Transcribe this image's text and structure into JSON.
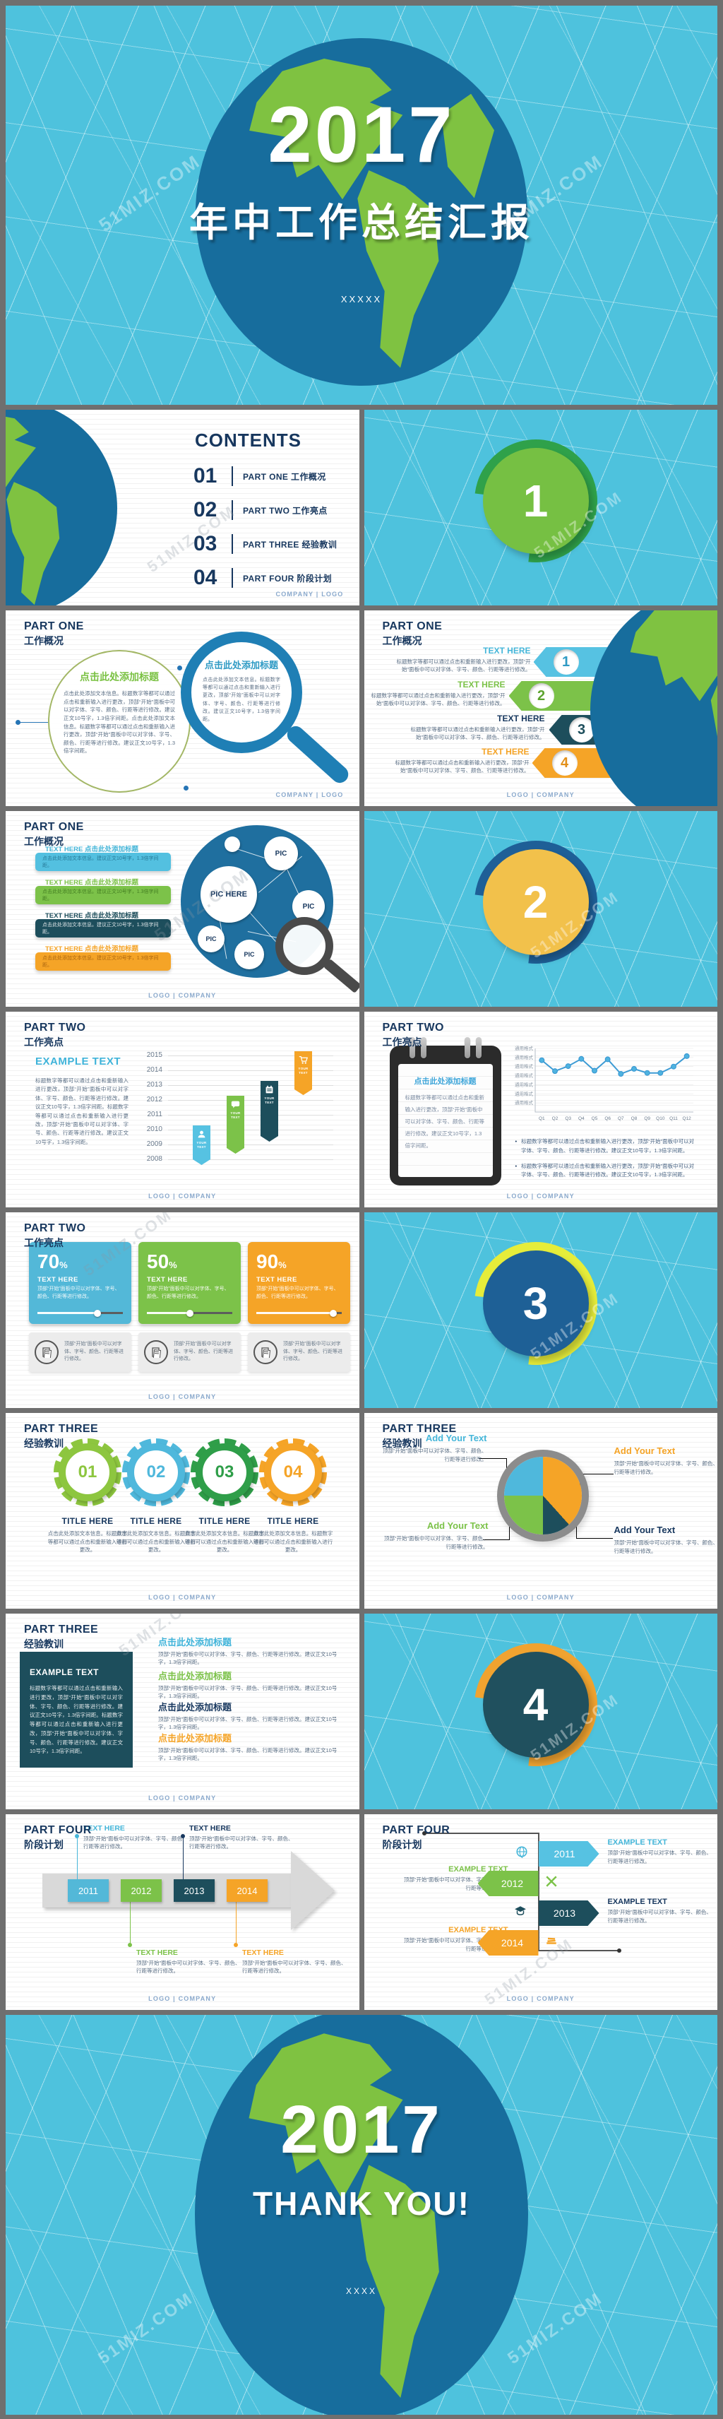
{
  "watermark": "51MIZ.COM",
  "colors": {
    "bg_blue": "#4ec2dd",
    "globe_blue": "#176d9d",
    "land_green": "#7fc241",
    "navy": "#17375e",
    "accent_blue": "#4fb8dc",
    "accent_green": "#7cc249",
    "accent_teal": "#1d4e5c",
    "accent_orange": "#f5a427",
    "frame_gray": "#6f6f6f"
  },
  "footers": {
    "company_logo": "COMPANY | LOGO",
    "logo_company": "LOGO | COMPANY"
  },
  "cover": {
    "year": "2017",
    "title": "年中工作总结汇报",
    "subtitle": "XXXXX"
  },
  "contents": {
    "title": "CONTENTS",
    "items": [
      {
        "num": "01",
        "label": "PART ONE  工作概况"
      },
      {
        "num": "02",
        "label": "PART TWO  工作亮点"
      },
      {
        "num": "03",
        "label": "PART THREE  经验教训"
      },
      {
        "num": "04",
        "label": "PART FOUR  阶段计划"
      }
    ]
  },
  "sections": {
    "part1": {
      "en": "PART ONE",
      "zh": "工作概况"
    },
    "part2": {
      "en": "PART TWO",
      "zh": "工作亮点"
    },
    "part3": {
      "en": "PART THREE",
      "zh": "经验教训"
    },
    "part4": {
      "en": "PART FOUR",
      "zh": "阶段计划"
    }
  },
  "dividers": {
    "d1": "1",
    "d2": "2",
    "d3": "3",
    "d4": "4"
  },
  "slide_magnifier": {
    "circle1": {
      "title": "点击此处添加标题",
      "body": "点击此处添加文本信息。标题数字等都可以通过点击和重新输入进行更改，顶部“开始”面板中可以对字体、字号、颜色、行距等进行修改。建议正文10号字，1.3倍字间距。点击此处添加文本信息。标题数字等都可以通过点击和重新输入进行更改，顶部“开始”面板中可以对字体、字号、颜色、行距等进行修改。建议正文10号字，1.3倍字间距。"
    },
    "circle2": {
      "title": "点击此处添加标题",
      "body": "点击此处添加文本信息。标题数字等都可以通过点击和重新输入进行更改，顶部“开始”面板中可以对字体、字号、颜色、行距等进行修改。建议正文10号字，1.3倍字间距。"
    }
  },
  "slide_arrows": {
    "items": [
      {
        "num": "1",
        "title": "TEXT HERE",
        "body": "标题数字等都可以通过点击和重新输入进行更改，顶部“开始”面板中可以对字体、字号、颜色、行距等进行修改。"
      },
      {
        "num": "2",
        "title": "TEXT HERE",
        "body": "标题数字等都可以通过点击和重新输入进行更改，顶部“开始”面板中可以对字体、字号、颜色、行距等进行修改。"
      },
      {
        "num": "3",
        "title": "TEXT HERE",
        "body": "标题数字等都可以通过点击和重新输入进行更改，顶部“开始”面板中可以对字体、字号、颜色、行距等进行修改。"
      },
      {
        "num": "4",
        "title": "TEXT HERE",
        "body": "标题数字等都可以通过点击和重新输入进行更改，顶部“开始”面板中可以对字体、字号、颜色、行距等进行修改。"
      }
    ]
  },
  "slide_network": {
    "pic_main": "PIC HERE",
    "pic": "PIC",
    "items": [
      {
        "label": "TEXT HERE 点击此处添加标题",
        "body": "点击此处添加文本信息。建议正文10号字，1.3倍字间距。"
      },
      {
        "label": "TEXT HERE 点击此处添加标题",
        "body": "点击此处添加文本信息。建议正文10号字，1.3倍字间距。"
      },
      {
        "label": "TEXT HERE 点击此处添加标题",
        "body": "点击此处添加文本信息。建议正文10号字，1.3倍字间距。"
      },
      {
        "label": "TEXT HERE 点击此处添加标题",
        "body": "点击此处添加文本信息。建议正文10号字，1.3倍字间距。"
      }
    ]
  },
  "slide_ribbons": {
    "title": "EXAMPLE TEXT",
    "body": "标题数字等都可以通过点击和重新输入进行更改，顶部“开始”面板中可以对字体、字号、颜色、行距等进行修改。建议正文10号字，1.3倍字间距。标题数字等都可以通过点击和重新输入进行更改，顶部“开始”面板中可以对字体、字号、颜色、行距等进行修改。建议正文10号字，1.3倍字间距。",
    "years": [
      "2015",
      "2014",
      "2013",
      "2012",
      "2011",
      "2010",
      "2009",
      "2008"
    ],
    "ribbon_label": "YOUR TEXT"
  },
  "slide_linechart": {
    "note_title": "点击此处添加标题",
    "note_body": "标题数字等都可以通过点击和重新输入进行更改，顶部“开始”面板中可以对字体、字号、颜色、行距等进行修改。建议正文10号字，1.3倍字间距。",
    "bullets": [
      "标题数字等都可以通过点击和重新输入进行更改，顶部“开始”面板中可以对字体、字号、颜色、行距等进行修改。建议正文10号字，1.3倍字间距。",
      "标题数字等都可以通过点击和重新输入进行更改，顶部“开始”面板中可以对字体、字号、颜色、行距等进行修改。建议正文10号字，1.3倍字间距。"
    ],
    "chart": {
      "type": "line",
      "x": [
        "Q1",
        "Q2",
        "Q3",
        "Q4",
        "Q5",
        "Q6",
        "Q7",
        "Q8",
        "Q9",
        "Q10",
        "Q11",
        "Q12"
      ],
      "values": [
        5.7,
        4.5,
        5.05,
        5.85,
        4.55,
        5.8,
        4.2,
        4.75,
        4.3,
        4.3,
        5.0,
        6.15
      ],
      "ylim": [
        0,
        7
      ],
      "y_tick_label": "通用格式",
      "y_tick_count": 7,
      "line_color": "#3d9bd4",
      "grid": true
    }
  },
  "slide_percent": {
    "sign": "%",
    "cards": [
      {
        "pct": "70",
        "title": "TEXT HERE",
        "body": "顶部“开始”面板中可以对字体、字号、颜色、行距等进行修改。"
      },
      {
        "pct": "50",
        "title": "TEXT HERE",
        "body": "顶部“开始”面板中可以对字体、字号、颜色、行距等进行修改。"
      },
      {
        "pct": "90",
        "title": "TEXT HERE",
        "body": "顶部“开始”面板中可以对字体、字号、颜色、行距等进行修改。"
      }
    ],
    "notes": [
      "顶部“开始”面板中可以对字体、字号、颜色、行距等进行修改。",
      "顶部“开始”面板中可以对字体、字号、颜色、行距等进行修改。",
      "顶部“开始”面板中可以对字体、字号、颜色、行距等进行修改。"
    ]
  },
  "slide_gears": {
    "items": [
      {
        "num": "01",
        "title": "TITLE HERE",
        "body": "点击此处添加文本信息。标题数字等都可以通过点击和重新输入进行更改。"
      },
      {
        "num": "02",
        "title": "TITLE HERE",
        "body": "点击此处添加文本信息。标题数字等都可以通过点击和重新输入进行更改。"
      },
      {
        "num": "03",
        "title": "TITLE HERE",
        "body": "点击此处添加文本信息。标题数字等都可以通过点击和重新输入进行更改。"
      },
      {
        "num": "04",
        "title": "TITLE HERE",
        "body": "点击此处添加文本信息。标题数字等都可以通过点击和重新输入进行更改。"
      }
    ]
  },
  "slide_pie": {
    "labels": [
      {
        "title": "Add Your Text",
        "body": "顶部“开始”面板中可以对字体、字号、颜色、行距等进行修改。"
      },
      {
        "title": "Add Your Text",
        "body": "顶部“开始”面板中可以对字体、字号、颜色、行距等进行修改。"
      },
      {
        "title": "Add Your Text",
        "body": "顶部“开始”面板中可以对字体、字号、颜色、行距等进行修改。"
      },
      {
        "title": "Add Your Text",
        "body": "顶部“开始”面板中可以对字体、字号、颜色、行距等进行修改。"
      }
    ]
  },
  "slide_blocks": {
    "box_title": "EXAMPLE TEXT",
    "box_body": "标题数字等都可以通过点击和重新输入进行更改，顶部“开始”面板中可以对字体、字号、颜色、行距等进行修改。建议正文10号字，1.3倍字间距。标题数字等都可以通过点击和重新输入进行更改，顶部“开始”面板中可以对字体、字号、颜色、行距等进行修改。建议正文10号字，1.3倍字间距。",
    "items": [
      {
        "title": "点击此处添加标题",
        "body": "顶部“开始”面板中可以对字体、字号、颜色、行距等进行修改。建议正文10号字，1.3倍字间距。"
      },
      {
        "title": "点击此处添加标题",
        "body": "顶部“开始”面板中可以对字体、字号、颜色、行距等进行修改。建议正文10号字，1.3倍字间距。"
      },
      {
        "title": "点击此处添加标题",
        "body": "顶部“开始”面板中可以对字体、字号、颜色、行距等进行修改。建议正文10号字，1.3倍字间距。"
      },
      {
        "title": "点击此处添加标题",
        "body": "顶部“开始”面板中可以对字体、字号、颜色、行距等进行修改。建议正文10号字，1.3倍字间距。"
      }
    ]
  },
  "slide_timeline": {
    "years": [
      "2011",
      "2012",
      "2013",
      "2014"
    ],
    "texts": [
      {
        "title": "TEXT HERE",
        "body": "顶部“开始”面板中可以对字体、字号、颜色、行距等进行修改。"
      },
      {
        "title": "TEXT HERE",
        "body": "顶部“开始”面板中可以对字体、字号、颜色、行距等进行修改。"
      },
      {
        "title": "TEXT HERE",
        "body": "顶部“开始”面板中可以对字体、字号、颜色、行距等进行修改。"
      },
      {
        "title": "TEXT HERE",
        "body": "顶部“开始”面板中可以对字体、字号、颜色、行距等进行修改。"
      }
    ]
  },
  "slide_vtimeline": {
    "items": [
      {
        "year": "2011",
        "title": "EXAMPLE TEXT",
        "body": "顶部“开始”面板中可以对字体、字号、颜色、行距等进行修改。"
      },
      {
        "year": "2012",
        "title": "EXAMPLE TEXT",
        "body": "顶部“开始”面板中可以对字体、字号、颜色、行距等进行修改。"
      },
      {
        "year": "2013",
        "title": "EXAMPLE TEXT",
        "body": "顶部“开始”面板中可以对字体、字号、颜色、行距等进行修改。"
      },
      {
        "year": "2014",
        "title": "EXAMPLE TEXT",
        "body": "顶部“开始”面板中可以对字体、字号、颜色、行距等进行修改。"
      }
    ]
  },
  "thankyou": {
    "year": "2017",
    "title": "THANK YOU!",
    "subtitle": "XXXX"
  }
}
